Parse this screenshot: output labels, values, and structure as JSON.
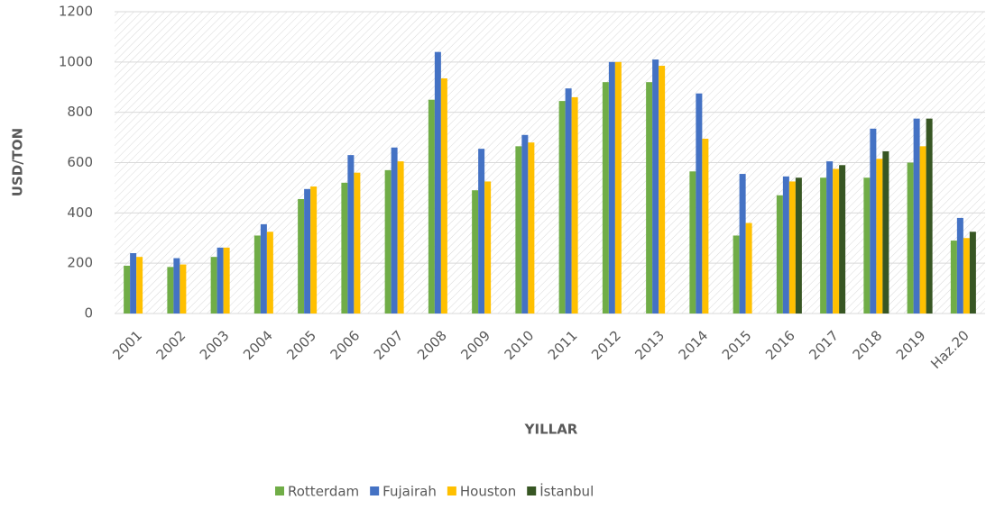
{
  "chart_data": {
    "type": "bar",
    "y_label": "USD/TON",
    "x_label": "YILLAR",
    "categories": [
      "2001",
      "2002",
      "2003",
      "2004",
      "2005",
      "2006",
      "2007",
      "2008",
      "2009",
      "2010",
      "2011",
      "2012",
      "2013",
      "2014",
      "2015",
      "2016",
      "2017",
      "2018",
      "2019",
      "Haz.20"
    ],
    "series": [
      {
        "name": "Rotterdam",
        "color": "#70ad47",
        "values": [
          190,
          185,
          225,
          310,
          455,
          520,
          570,
          850,
          490,
          665,
          845,
          920,
          920,
          565,
          310,
          470,
          540,
          540,
          600,
          290
        ]
      },
      {
        "name": "Fujairah",
        "color": "#4472c4",
        "values": [
          240,
          220,
          262,
          355,
          495,
          630,
          660,
          1040,
          655,
          710,
          895,
          1000,
          1010,
          875,
          555,
          545,
          605,
          735,
          775,
          380
        ]
      },
      {
        "name": "Houston",
        "color": "#ffc000",
        "values": [
          225,
          195,
          262,
          325,
          505,
          560,
          605,
          935,
          525,
          680,
          860,
          1000,
          985,
          695,
          360,
          525,
          575,
          615,
          665,
          300
        ]
      },
      {
        "name": "İstanbul",
        "color": "#375623",
        "values": [
          null,
          null,
          null,
          null,
          null,
          null,
          null,
          null,
          null,
          null,
          null,
          null,
          null,
          null,
          null,
          540,
          590,
          645,
          775,
          325
        ]
      }
    ],
    "ylim": [
      0,
      1200
    ],
    "yticks": [
      0,
      200,
      400,
      600,
      800,
      1000,
      1200
    ],
    "grid": true
  }
}
